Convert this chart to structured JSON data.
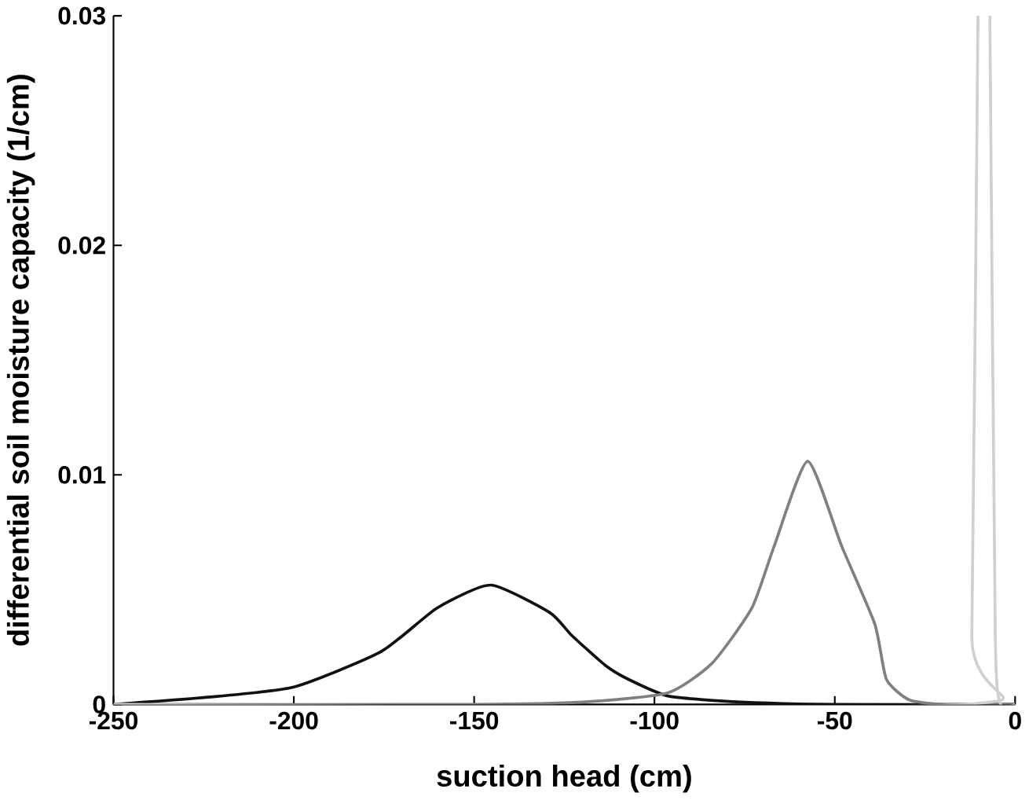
{
  "chart_data": {
    "type": "line",
    "xlabel": "suction head (cm)",
    "ylabel": "differential soil moisture capacity (1/cm)",
    "xlim": [
      -250,
      0
    ],
    "ylim": [
      0,
      0.03
    ],
    "xticks": [
      -250,
      -200,
      -150,
      -100,
      -50,
      0
    ],
    "yticks": [
      0,
      0.01,
      0.02,
      0.03
    ],
    "marker": "none",
    "line_style": "solid",
    "series": [
      {
        "color": "#111111",
        "x": [
          -250,
          -225,
          -200,
          -175.8,
          -160.3,
          -145.4,
          -129,
          -122.9,
          -113.6,
          -107.3,
          -96,
          -76,
          -50,
          0
        ],
        "values": [
          0,
          0.0003,
          0.00076,
          0.0023,
          0.0042,
          0.0052,
          0.004,
          0.003,
          0.0017,
          0.0011,
          0.00036,
          0.0001,
          0,
          0
        ]
      },
      {
        "color": "#808080",
        "x": [
          -250,
          -150,
          -120,
          -96.4,
          -84,
          -73,
          -66.8,
          -57.5,
          -48.1,
          -38.9,
          -35.7,
          -29.4,
          -20,
          0
        ],
        "values": [
          0,
          0,
          0.0001,
          0.0005,
          0.0018,
          0.0042,
          0.0069,
          0.0106,
          0.0069,
          0.0035,
          0.0011,
          0.0002,
          0,
          0
        ]
      },
      {
        "color": "#d0d0d0",
        "x": [
          -250,
          -14,
          -12,
          -10.3,
          -8.6,
          -7,
          -5.5,
          -4,
          0
        ],
        "values": [
          0,
          0,
          0.003,
          0.03,
          null,
          0.03,
          0.003,
          0,
          0
        ]
      }
    ]
  }
}
